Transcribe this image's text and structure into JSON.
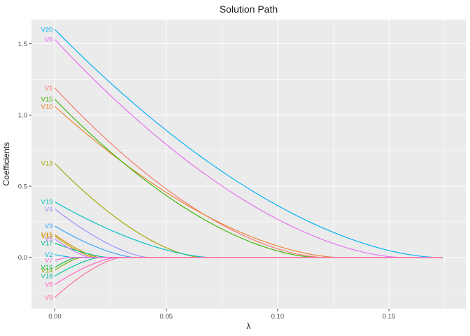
{
  "chart_data": {
    "type": "line",
    "title": "Solution Path",
    "xlabel": "λ",
    "ylabel": "Coefficients",
    "xlim": [
      -0.0105,
      0.1845
    ],
    "ylim": [
      -0.36,
      1.67
    ],
    "x_major_ticks": [
      0.0,
      0.05,
      0.1,
      0.15
    ],
    "x_tick_labels": [
      "0.00",
      "0.05",
      "0.10",
      "0.15"
    ],
    "x_minor_ticks": [
      0.025,
      0.075,
      0.125,
      0.175
    ],
    "y_major_ticks": [
      0.0,
      0.5,
      1.0,
      1.5
    ],
    "y_tick_labels": [
      "0.0",
      "0.5",
      "1.0",
      "1.5"
    ],
    "y_minor_ticks": [
      -0.25,
      0.25,
      0.75,
      1.25
    ],
    "lambda_max": 0.174,
    "panel_bg": "#EBEBEB",
    "grid_color": "#FFFFFF",
    "tick_color": "#333333",
    "tick_label_color": "#4D4D4D",
    "grid": true,
    "legend_position": "none",
    "curve_note": "Each coefficient path: value(λ) = start × (1 − λ/lambda_zero)^shape for λ ≤ lambda_zero, then 0 up to lambda_max. Lines labeled at λ = 0.",
    "series": [
      {
        "name": "V1",
        "color": "#F8766D",
        "start": 1.19,
        "lambda_zero": 0.121,
        "shape": 1.7
      },
      {
        "name": "V10",
        "color": "#EA8331",
        "start": 1.06,
        "lambda_zero": 0.128,
        "shape": 1.7
      },
      {
        "name": "V11",
        "color": "#D89000",
        "start": 0.16,
        "lambda_zero": 0.02,
        "shape": 1.4
      },
      {
        "name": "V12",
        "color": "#C09B00",
        "start": 0.15,
        "lambda_zero": 0.018,
        "shape": 1.4
      },
      {
        "name": "V13",
        "color": "#A3A500",
        "start": 0.66,
        "lambda_zero": 0.066,
        "shape": 1.6
      },
      {
        "name": "V14",
        "color": "#7CAE00",
        "start": -0.09,
        "lambda_zero": 0.012,
        "shape": 1.4
      },
      {
        "name": "V15",
        "color": "#39B600",
        "start": 1.11,
        "lambda_zero": 0.118,
        "shape": 1.7
      },
      {
        "name": "V16",
        "color": "#00BB4E",
        "start": -0.07,
        "lambda_zero": 0.01,
        "shape": 1.4
      },
      {
        "name": "V17",
        "color": "#00C087",
        "start": 0.1,
        "lambda_zero": 0.024,
        "shape": 1.4
      },
      {
        "name": "V18",
        "color": "#00C1A3",
        "start": -0.13,
        "lambda_zero": 0.02,
        "shape": 1.4
      },
      {
        "name": "V19",
        "color": "#00BFC4",
        "start": 0.39,
        "lambda_zero": 0.07,
        "shape": 1.6
      },
      {
        "name": "V2",
        "color": "#00BAE0",
        "start": 0.02,
        "lambda_zero": 0.008,
        "shape": 1.2
      },
      {
        "name": "V20",
        "color": "#00B0F6",
        "start": 1.6,
        "lambda_zero": 0.172,
        "shape": 1.7
      },
      {
        "name": "V3",
        "color": "#35A2FF",
        "start": 0.22,
        "lambda_zero": 0.036,
        "shape": 1.5
      },
      {
        "name": "V4",
        "color": "#9590FF",
        "start": 0.34,
        "lambda_zero": 0.042,
        "shape": 1.5
      },
      {
        "name": "V5",
        "color": "#C77CFF",
        "start": 0.13,
        "lambda_zero": 0.016,
        "shape": 1.4
      },
      {
        "name": "V6",
        "color": "#E76BF3",
        "start": 1.53,
        "lambda_zero": 0.156,
        "shape": 1.7
      },
      {
        "name": "V7",
        "color": "#FA62DB",
        "start": -0.02,
        "lambda_zero": 0.006,
        "shape": 1.2
      },
      {
        "name": "V8",
        "color": "#FF62BC",
        "start": -0.19,
        "lambda_zero": 0.028,
        "shape": 1.5
      },
      {
        "name": "V9",
        "color": "#FF6A98",
        "start": -0.28,
        "lambda_zero": 0.03,
        "shape": 1.5
      }
    ]
  }
}
